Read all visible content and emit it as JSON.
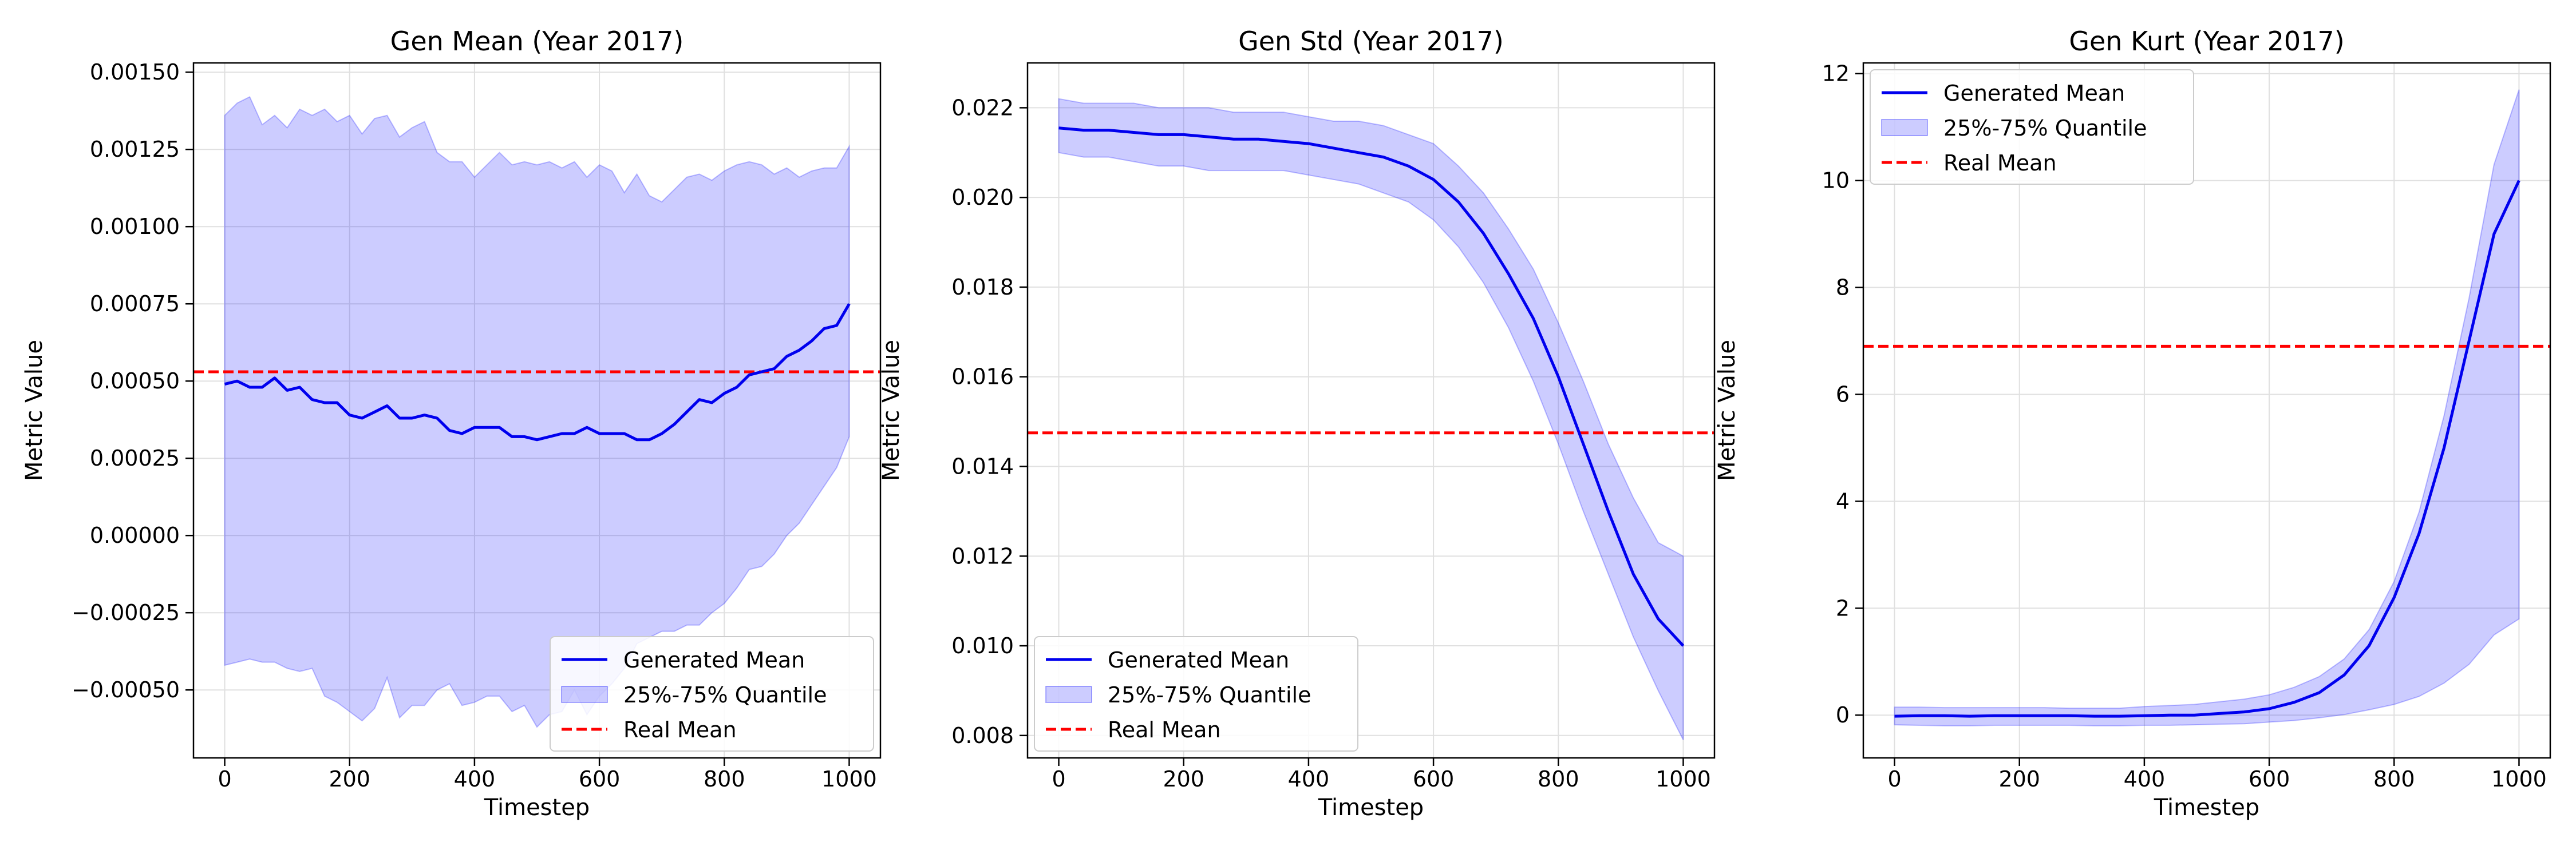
{
  "chart_data": [
    {
      "type": "line",
      "title": "Gen Mean (Year 2017)",
      "xlabel": "Timestep",
      "ylabel": "Metric Value",
      "xlim": [
        -50,
        1050
      ],
      "ylim": [
        -0.00072,
        0.00153
      ],
      "x_ticks": [
        0,
        200,
        400,
        600,
        800,
        1000
      ],
      "x_tick_labels": [
        "0",
        "200",
        "400",
        "600",
        "800",
        "1000"
      ],
      "y_ticks": [
        -0.0005,
        -0.00025,
        0.0,
        0.00025,
        0.0005,
        0.00075,
        0.001,
        0.00125,
        0.0015
      ],
      "y_tick_labels": [
        "−0.00050",
        "−0.00025",
        "0.00000",
        "0.00025",
        "0.00050",
        "0.00075",
        "0.00100",
        "0.00125",
        "0.00150"
      ],
      "grid": true,
      "legend_position": "lower right",
      "legend": [
        "Generated Mean",
        "25%-75% Quantile",
        "Real Mean"
      ],
      "x": [
        0,
        20,
        40,
        60,
        80,
        100,
        120,
        140,
        160,
        180,
        200,
        220,
        240,
        260,
        280,
        300,
        320,
        340,
        360,
        380,
        400,
        420,
        440,
        460,
        480,
        500,
        520,
        540,
        560,
        580,
        600,
        620,
        640,
        660,
        680,
        700,
        720,
        740,
        760,
        780,
        800,
        820,
        840,
        860,
        880,
        900,
        920,
        940,
        960,
        980,
        1000
      ],
      "series": [
        {
          "name": "Generated Mean",
          "kind": "line",
          "color": "#0000ee",
          "values": [
            0.00049,
            0.0005,
            0.00048,
            0.00048,
            0.00051,
            0.00047,
            0.00048,
            0.00044,
            0.00043,
            0.00043,
            0.00039,
            0.00038,
            0.0004,
            0.00042,
            0.00038,
            0.00038,
            0.00039,
            0.00038,
            0.00034,
            0.00033,
            0.00035,
            0.00035,
            0.00035,
            0.00032,
            0.00032,
            0.00031,
            0.00032,
            0.00033,
            0.00033,
            0.00035,
            0.00033,
            0.00033,
            0.00033,
            0.00031,
            0.00031,
            0.00033,
            0.00036,
            0.0004,
            0.00044,
            0.00043,
            0.00046,
            0.00048,
            0.00052,
            0.00053,
            0.00054,
            0.00058,
            0.0006,
            0.00063,
            0.00067,
            0.00068,
            0.00075
          ]
        },
        {
          "name": "25%-75% Quantile",
          "kind": "band",
          "color": "#0000ff",
          "lower": [
            -0.00042,
            -0.00041,
            -0.0004,
            -0.00041,
            -0.00041,
            -0.00043,
            -0.00044,
            -0.00043,
            -0.00052,
            -0.00054,
            -0.00057,
            -0.0006,
            -0.00056,
            -0.00046,
            -0.00059,
            -0.00055,
            -0.00055,
            -0.0005,
            -0.00048,
            -0.00055,
            -0.00054,
            -0.00052,
            -0.00052,
            -0.00057,
            -0.00055,
            -0.00062,
            -0.00058,
            -0.00057,
            -0.0005,
            -0.00058,
            -0.00052,
            -0.00048,
            -0.00043,
            -0.00035,
            -0.00033,
            -0.00031,
            -0.00031,
            -0.00029,
            -0.00029,
            -0.00025,
            -0.00022,
            -0.00017,
            -0.00011,
            -0.0001,
            -6e-05,
            0.0,
            4e-05,
            0.0001,
            0.00016,
            0.00022,
            0.00032
          ],
          "upper": [
            0.00136,
            0.0014,
            0.00142,
            0.00133,
            0.00136,
            0.00132,
            0.00138,
            0.00136,
            0.00138,
            0.00134,
            0.00136,
            0.0013,
            0.00135,
            0.00136,
            0.00129,
            0.00132,
            0.00134,
            0.00124,
            0.00121,
            0.00121,
            0.00116,
            0.0012,
            0.00124,
            0.0012,
            0.00121,
            0.0012,
            0.00121,
            0.00119,
            0.00121,
            0.00116,
            0.0012,
            0.00118,
            0.00111,
            0.00117,
            0.0011,
            0.00108,
            0.00112,
            0.00116,
            0.00117,
            0.00115,
            0.00118,
            0.0012,
            0.00121,
            0.0012,
            0.00117,
            0.00119,
            0.00116,
            0.00118,
            0.00119,
            0.00119,
            0.00126
          ]
        },
        {
          "name": "Real Mean",
          "kind": "hline",
          "color": "#ff0000",
          "value": 0.00053
        }
      ]
    },
    {
      "type": "line",
      "title": "Gen Std (Year 2017)",
      "xlabel": "Timestep",
      "ylabel": "Metric Value",
      "xlim": [
        -50,
        1050
      ],
      "ylim": [
        0.0075,
        0.023
      ],
      "x_ticks": [
        0,
        200,
        400,
        600,
        800,
        1000
      ],
      "x_tick_labels": [
        "0",
        "200",
        "400",
        "600",
        "800",
        "1000"
      ],
      "y_ticks": [
        0.008,
        0.01,
        0.012,
        0.014,
        0.016,
        0.018,
        0.02,
        0.022
      ],
      "y_tick_labels": [
        "0.008",
        "0.010",
        "0.012",
        "0.014",
        "0.016",
        "0.018",
        "0.020",
        "0.022"
      ],
      "grid": true,
      "legend_position": "lower left",
      "legend": [
        "Generated Mean",
        "25%-75% Quantile",
        "Real Mean"
      ],
      "x": [
        0,
        40,
        80,
        120,
        160,
        200,
        240,
        280,
        320,
        360,
        400,
        440,
        480,
        520,
        560,
        600,
        640,
        680,
        720,
        760,
        800,
        840,
        880,
        920,
        960,
        1000
      ],
      "series": [
        {
          "name": "Generated Mean",
          "kind": "line",
          "color": "#0000ee",
          "values": [
            0.02155,
            0.0215,
            0.0215,
            0.02145,
            0.0214,
            0.0214,
            0.02135,
            0.0213,
            0.0213,
            0.02125,
            0.0212,
            0.0211,
            0.021,
            0.0209,
            0.0207,
            0.0204,
            0.0199,
            0.0192,
            0.0183,
            0.0173,
            0.016,
            0.0145,
            0.013,
            0.0116,
            0.0106,
            0.01
          ]
        },
        {
          "name": "25%-75% Quantile",
          "kind": "band",
          "color": "#0000ff",
          "lower": [
            0.021,
            0.0209,
            0.0209,
            0.0208,
            0.0207,
            0.0207,
            0.0206,
            0.0206,
            0.0206,
            0.0206,
            0.0205,
            0.0204,
            0.0203,
            0.0201,
            0.0199,
            0.0195,
            0.0189,
            0.0181,
            0.0171,
            0.0159,
            0.0145,
            0.013,
            0.0116,
            0.0102,
            0.009,
            0.0079
          ],
          "upper": [
            0.0222,
            0.0221,
            0.0221,
            0.0221,
            0.022,
            0.022,
            0.022,
            0.0219,
            0.0219,
            0.0219,
            0.0218,
            0.0217,
            0.0217,
            0.0216,
            0.0214,
            0.0212,
            0.0207,
            0.0201,
            0.0193,
            0.0184,
            0.0172,
            0.0159,
            0.0145,
            0.0133,
            0.0123,
            0.012
          ]
        },
        {
          "name": "Real Mean",
          "kind": "hline",
          "color": "#ff0000",
          "value": 0.01475
        }
      ]
    },
    {
      "type": "line",
      "title": "Gen Kurt (Year 2017)",
      "xlabel": "Timestep",
      "ylabel": "Metric Value",
      "xlim": [
        -50,
        1050
      ],
      "ylim": [
        -0.8,
        12.2
      ],
      "x_ticks": [
        0,
        200,
        400,
        600,
        800,
        1000
      ],
      "x_tick_labels": [
        "0",
        "200",
        "400",
        "600",
        "800",
        "1000"
      ],
      "y_ticks": [
        0,
        2,
        4,
        6,
        8,
        10,
        12
      ],
      "y_tick_labels": [
        "0",
        "2",
        "4",
        "6",
        "8",
        "10",
        "12"
      ],
      "grid": true,
      "legend_position": "upper left",
      "legend": [
        "Generated Mean",
        "25%-75% Quantile",
        "Real Mean"
      ],
      "x": [
        0,
        40,
        80,
        120,
        160,
        200,
        240,
        280,
        320,
        360,
        400,
        440,
        480,
        520,
        560,
        600,
        640,
        680,
        720,
        760,
        800,
        840,
        880,
        920,
        960,
        1000
      ],
      "series": [
        {
          "name": "Generated Mean",
          "kind": "line",
          "color": "#0000ee",
          "values": [
            -0.02,
            -0.01,
            -0.01,
            -0.02,
            -0.01,
            -0.01,
            -0.01,
            -0.01,
            -0.02,
            -0.02,
            -0.01,
            0.0,
            0.0,
            0.03,
            0.06,
            0.12,
            0.24,
            0.42,
            0.75,
            1.3,
            2.2,
            3.4,
            5.0,
            7.0,
            9.0,
            10.0
          ]
        },
        {
          "name": "25%-75% Quantile",
          "kind": "band",
          "color": "#0000ff",
          "lower": [
            -0.18,
            -0.19,
            -0.2,
            -0.2,
            -0.19,
            -0.19,
            -0.19,
            -0.19,
            -0.2,
            -0.2,
            -0.19,
            -0.19,
            -0.18,
            -0.17,
            -0.16,
            -0.13,
            -0.1,
            -0.05,
            0.01,
            0.1,
            0.2,
            0.35,
            0.6,
            0.95,
            1.5,
            1.8
          ],
          "upper": [
            0.15,
            0.15,
            0.14,
            0.14,
            0.14,
            0.14,
            0.14,
            0.13,
            0.13,
            0.13,
            0.16,
            0.18,
            0.2,
            0.25,
            0.3,
            0.38,
            0.52,
            0.72,
            1.05,
            1.6,
            2.5,
            3.8,
            5.6,
            7.8,
            10.3,
            11.7
          ]
        },
        {
          "name": "Real Mean",
          "kind": "hline",
          "color": "#ff0000",
          "value": 6.9
        }
      ]
    }
  ]
}
